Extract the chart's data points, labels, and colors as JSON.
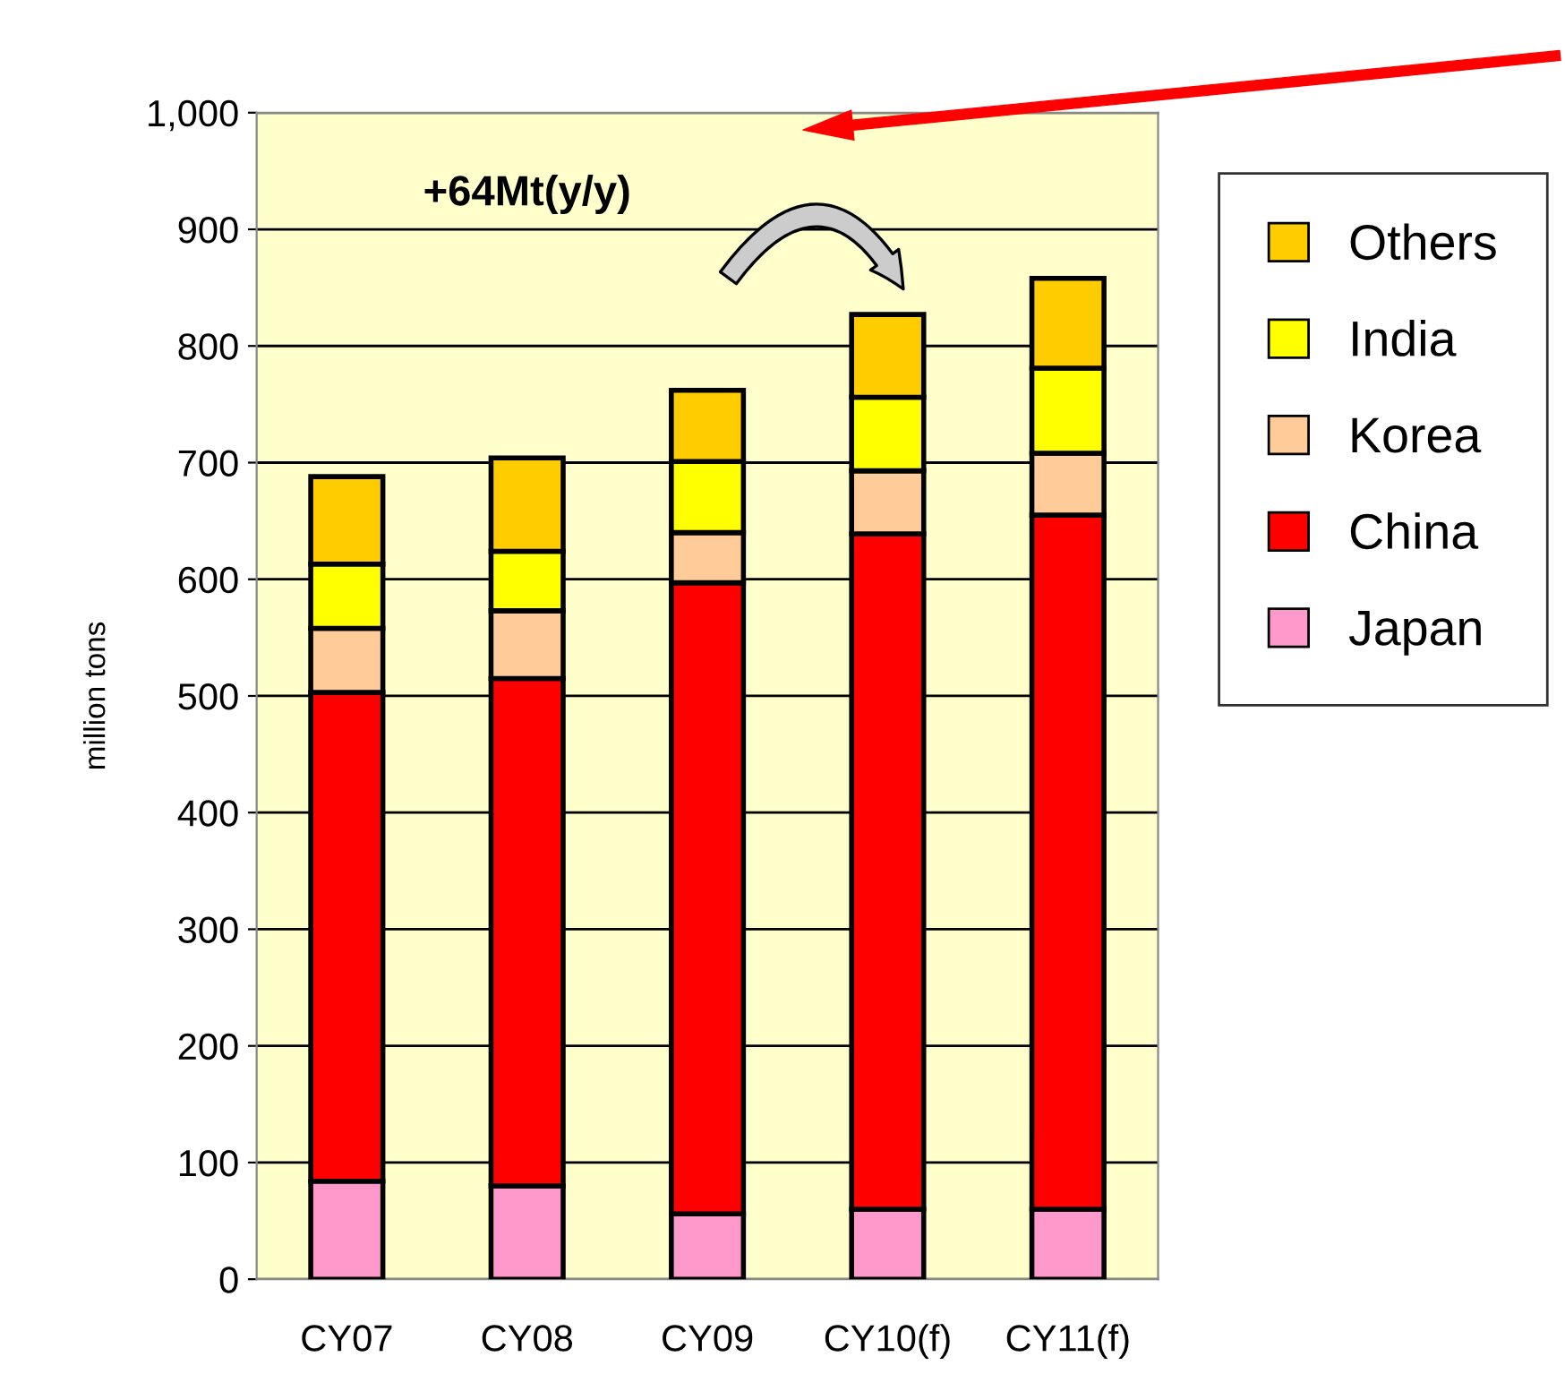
{
  "chart_data": {
    "type": "bar",
    "stacked": true,
    "ylabel": "million tons",
    "categories": [
      "CY07",
      "CY08",
      "CY09",
      "CY10(f)",
      "CY11(f)"
    ],
    "series": [
      {
        "name": "Japan",
        "color": "#ff99cc",
        "values": [
          84,
          80,
          56,
          60,
          60
        ]
      },
      {
        "name": "China",
        "color": "#ff0000",
        "values": [
          419,
          435,
          541,
          579,
          595
        ]
      },
      {
        "name": "Korea",
        "color": "#ffcc99",
        "values": [
          55,
          58,
          43,
          54,
          53
        ]
      },
      {
        "name": "India",
        "color": "#ffff00",
        "values": [
          55,
          51,
          61,
          63,
          73
        ]
      },
      {
        "name": "Others",
        "color": "#ffcc00",
        "values": [
          75,
          80,
          61,
          71,
          77
        ]
      }
    ],
    "ylim": [
      0,
      1000
    ],
    "yticks": [
      0,
      100,
      200,
      300,
      400,
      500,
      600,
      700,
      800,
      900,
      {
        "value": 1000,
        "label": "1,000"
      }
    ],
    "grid": "y",
    "legend": "right",
    "annotations": [
      "+64Mt(y/y)"
    ]
  }
}
